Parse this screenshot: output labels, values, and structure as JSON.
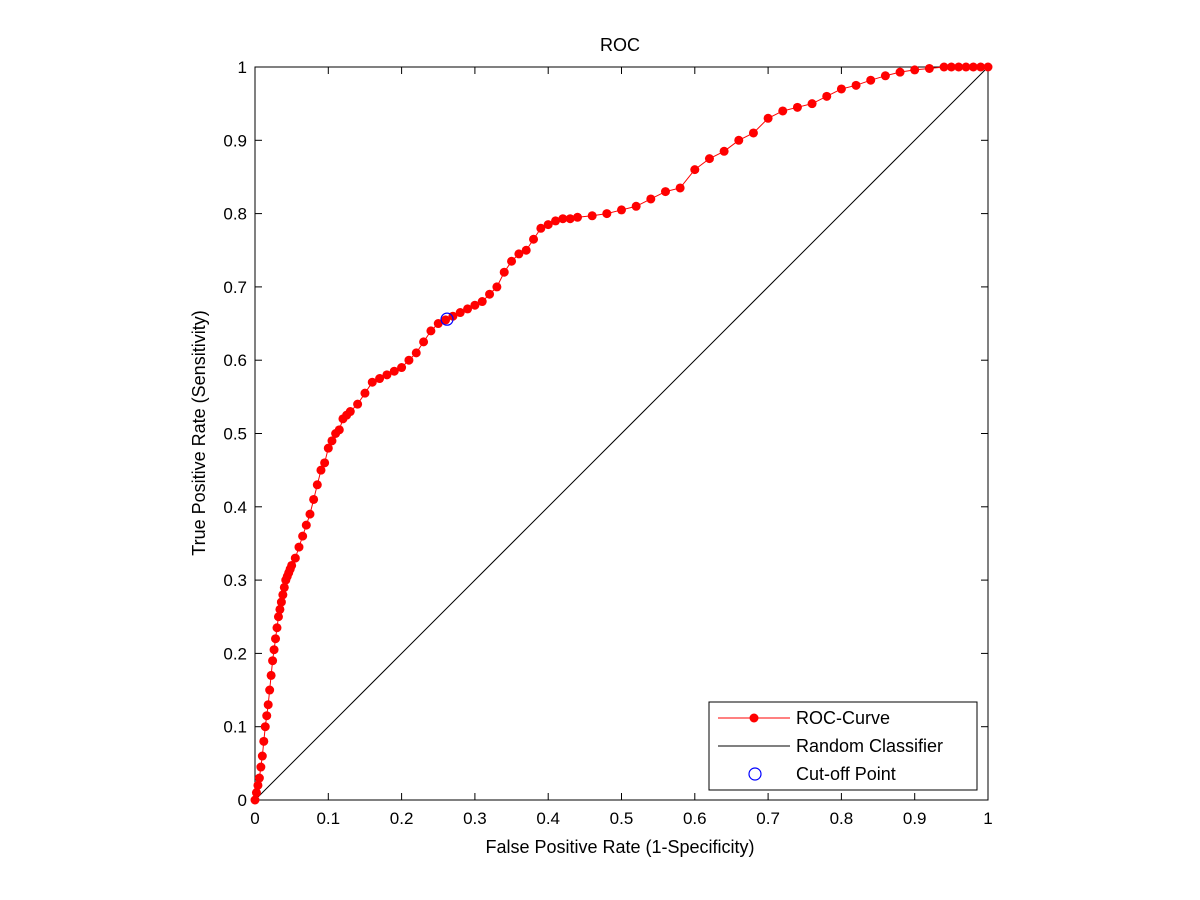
{
  "chart_data": {
    "type": "line",
    "title": "ROC",
    "xlabel": "False Positive Rate (1-Specificity)",
    "ylabel": "True Positive Rate (Sensitivity)",
    "xlim": [
      0,
      1
    ],
    "ylim": [
      0,
      1
    ],
    "xticks": [
      "0",
      "0.1",
      "0.2",
      "0.3",
      "0.4",
      "0.5",
      "0.6",
      "0.7",
      "0.8",
      "0.9",
      "1"
    ],
    "yticks": [
      "0",
      "0.1",
      "0.2",
      "0.3",
      "0.4",
      "0.5",
      "0.6",
      "0.7",
      "0.8",
      "0.9",
      "1"
    ],
    "grid": false,
    "legend_position": "bottom-right",
    "series": [
      {
        "name": "ROC-Curve",
        "color": "#ff0000",
        "style": "line-with-dot-markers",
        "x": [
          0,
          0.002,
          0.004,
          0.006,
          0.008,
          0.01,
          0.012,
          0.014,
          0.016,
          0.018,
          0.02,
          0.022,
          0.024,
          0.026,
          0.028,
          0.03,
          0.032,
          0.034,
          0.036,
          0.038,
          0.04,
          0.042,
          0.044,
          0.046,
          0.048,
          0.05,
          0.055,
          0.06,
          0.065,
          0.07,
          0.075,
          0.08,
          0.085,
          0.09,
          0.095,
          0.1,
          0.105,
          0.11,
          0.115,
          0.12,
          0.125,
          0.13,
          0.14,
          0.15,
          0.16,
          0.17,
          0.18,
          0.19,
          0.2,
          0.21,
          0.22,
          0.23,
          0.24,
          0.25,
          0.26,
          0.27,
          0.28,
          0.29,
          0.3,
          0.31,
          0.32,
          0.33,
          0.34,
          0.35,
          0.36,
          0.37,
          0.38,
          0.39,
          0.4,
          0.41,
          0.42,
          0.43,
          0.44,
          0.46,
          0.48,
          0.5,
          0.52,
          0.54,
          0.56,
          0.58,
          0.6,
          0.62,
          0.64,
          0.66,
          0.68,
          0.7,
          0.72,
          0.74,
          0.76,
          0.78,
          0.8,
          0.82,
          0.84,
          0.86,
          0.88,
          0.9,
          0.92,
          0.94,
          0.95,
          0.96,
          0.97,
          0.98,
          0.99,
          1
        ],
        "y": [
          0,
          0.01,
          0.02,
          0.03,
          0.045,
          0.06,
          0.08,
          0.1,
          0.115,
          0.13,
          0.15,
          0.17,
          0.19,
          0.205,
          0.22,
          0.235,
          0.25,
          0.26,
          0.27,
          0.28,
          0.29,
          0.3,
          0.305,
          0.31,
          0.315,
          0.32,
          0.33,
          0.345,
          0.36,
          0.375,
          0.39,
          0.41,
          0.43,
          0.45,
          0.46,
          0.48,
          0.49,
          0.5,
          0.505,
          0.52,
          0.525,
          0.53,
          0.54,
          0.555,
          0.57,
          0.575,
          0.58,
          0.585,
          0.59,
          0.6,
          0.61,
          0.625,
          0.64,
          0.65,
          0.655,
          0.66,
          0.665,
          0.67,
          0.675,
          0.68,
          0.69,
          0.7,
          0.72,
          0.735,
          0.745,
          0.75,
          0.765,
          0.78,
          0.785,
          0.79,
          0.793,
          0.793,
          0.795,
          0.797,
          0.8,
          0.805,
          0.81,
          0.82,
          0.83,
          0.835,
          0.86,
          0.875,
          0.885,
          0.9,
          0.91,
          0.93,
          0.94,
          0.945,
          0.95,
          0.96,
          0.97,
          0.975,
          0.982,
          0.988,
          0.993,
          0.996,
          0.998,
          1,
          1,
          1,
          1,
          1,
          1,
          1
        ]
      },
      {
        "name": "Random Classifier",
        "color": "#000000",
        "style": "line",
        "x": [
          0,
          1
        ],
        "y": [
          0,
          1
        ]
      },
      {
        "name": "Cut-off Point",
        "color": "#0000ff",
        "style": "open-circle-marker",
        "x": [
          0.262
        ],
        "y": [
          0.656
        ]
      }
    ]
  }
}
